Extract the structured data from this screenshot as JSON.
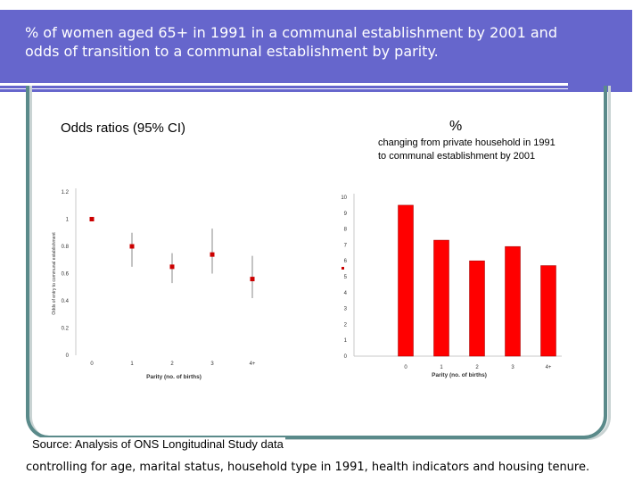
{
  "title": "% of women aged 65+ in 1991 in a communal establishment by 2001 and odds of transition to a communal establishment by parity.",
  "left_heading": "Odds ratios (95% CI)",
  "right_heading": "%",
  "right_subheading": "changing from private household in 1991 to communal establishment by 2001",
  "source": "Source: Analysis of ONS Longitudinal Study data",
  "footnote": "controlling for age, marital status, household type in 1991, health indicators and housing tenure.",
  "colors": {
    "title_bg": "#6666cc",
    "frame": "#5a8a8a",
    "bar": "#ff0000",
    "marker": "#cc0000"
  },
  "chart_data": [
    {
      "type": "scatter",
      "xlabel": "Parity (no. of births)",
      "ylabel": "Odds of entry to communal establishment",
      "categories": [
        "0",
        "1",
        "2",
        "3",
        "4+"
      ],
      "values": [
        1.0,
        0.8,
        0.65,
        0.74,
        0.56
      ],
      "ci_low": [
        1.0,
        0.65,
        0.53,
        0.6,
        0.42
      ],
      "ci_high": [
        1.0,
        0.9,
        0.75,
        0.93,
        0.73
      ],
      "yticks": [
        "0",
        "0.2",
        "0.4",
        "0.6",
        "0.8",
        "1",
        "1.2"
      ],
      "ylim": [
        0,
        1.2
      ],
      "grid": false,
      "legend": "none"
    },
    {
      "type": "bar",
      "xlabel": "Parity (no. of births)",
      "categories": [
        "0",
        "1",
        "2",
        "3",
        "4+"
      ],
      "values": [
        9.5,
        7.3,
        6.0,
        6.9,
        5.7
      ],
      "yticks": [
        "0",
        "1",
        "2",
        "3",
        "4",
        "5",
        "6",
        "7",
        "8",
        "9",
        "10"
      ],
      "ylim": [
        0,
        10
      ],
      "grid": false,
      "legend": "none"
    }
  ]
}
